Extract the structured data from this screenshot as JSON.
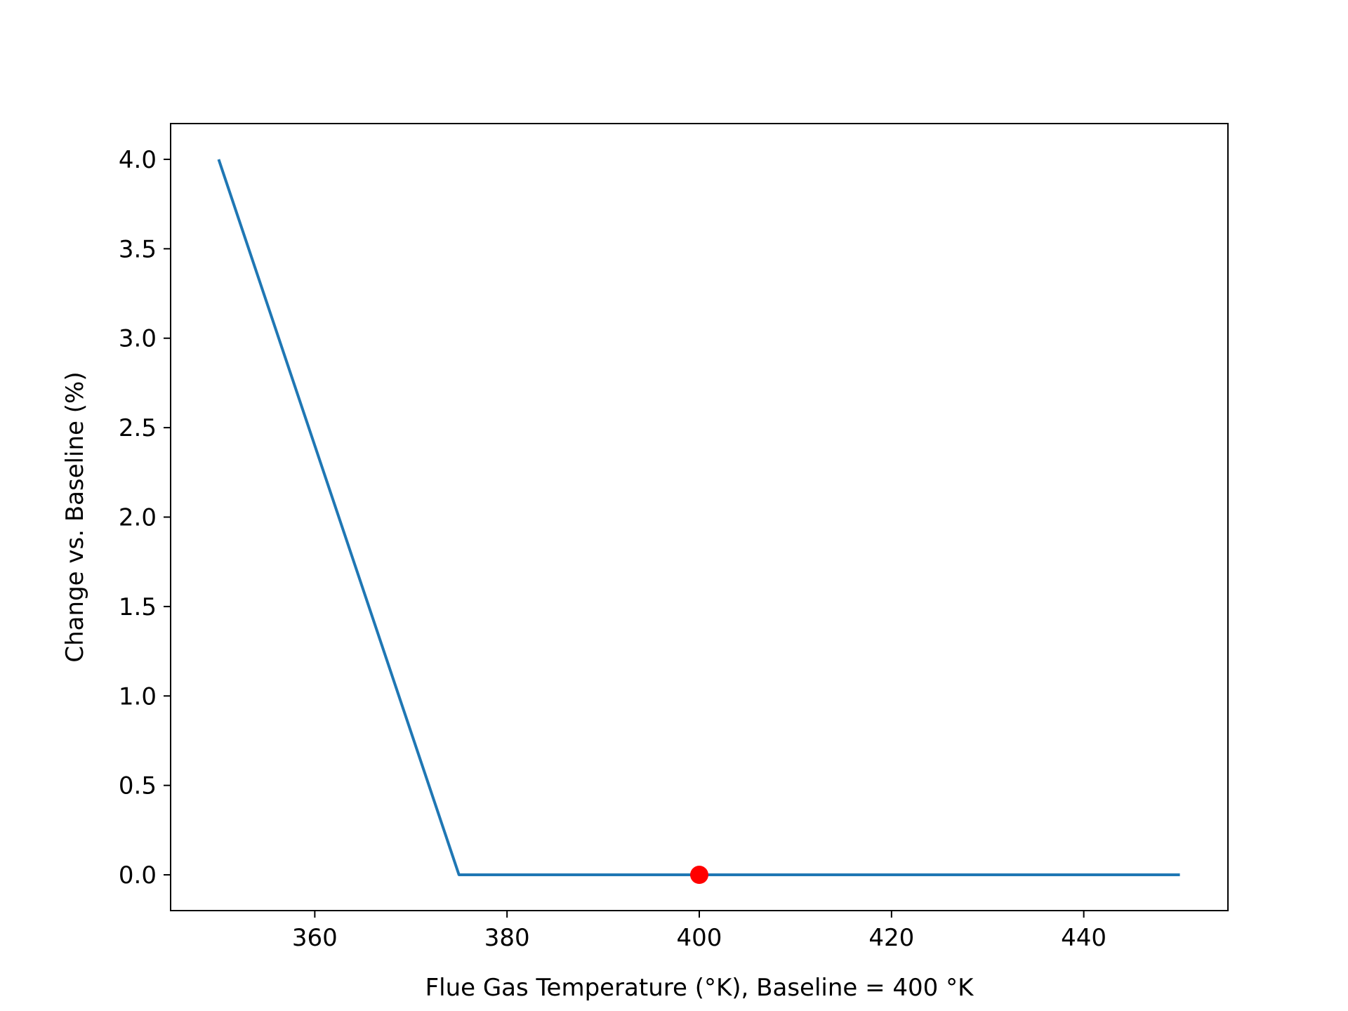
{
  "chart_data": {
    "type": "line",
    "title": "",
    "xlabel": "Flue Gas Temperature (°K), Baseline = 400 °K",
    "ylabel": "Change vs. Baseline (%)",
    "xlim": [
      345,
      455
    ],
    "ylim": [
      -0.2,
      4.2
    ],
    "xticks": [
      360,
      380,
      400,
      420,
      440
    ],
    "xtick_labels": [
      "360",
      "380",
      "400",
      "420",
      "440"
    ],
    "yticks": [
      0.0,
      0.5,
      1.0,
      1.5,
      2.0,
      2.5,
      3.0,
      3.5,
      4.0
    ],
    "ytick_labels": [
      "0.0",
      "0.5",
      "1.0",
      "1.5",
      "2.0",
      "2.5",
      "3.0",
      "3.5",
      "4.0"
    ],
    "grid": false,
    "series": [
      {
        "color": "#1f77b4",
        "x": [
          350,
          375,
          400,
          425,
          450
        ],
        "y": [
          4.0,
          0.0,
          0.0,
          0.0,
          0.0
        ]
      }
    ],
    "markers": [
      {
        "x": 400,
        "y": 0.0,
        "color": "#ff0000"
      }
    ]
  }
}
